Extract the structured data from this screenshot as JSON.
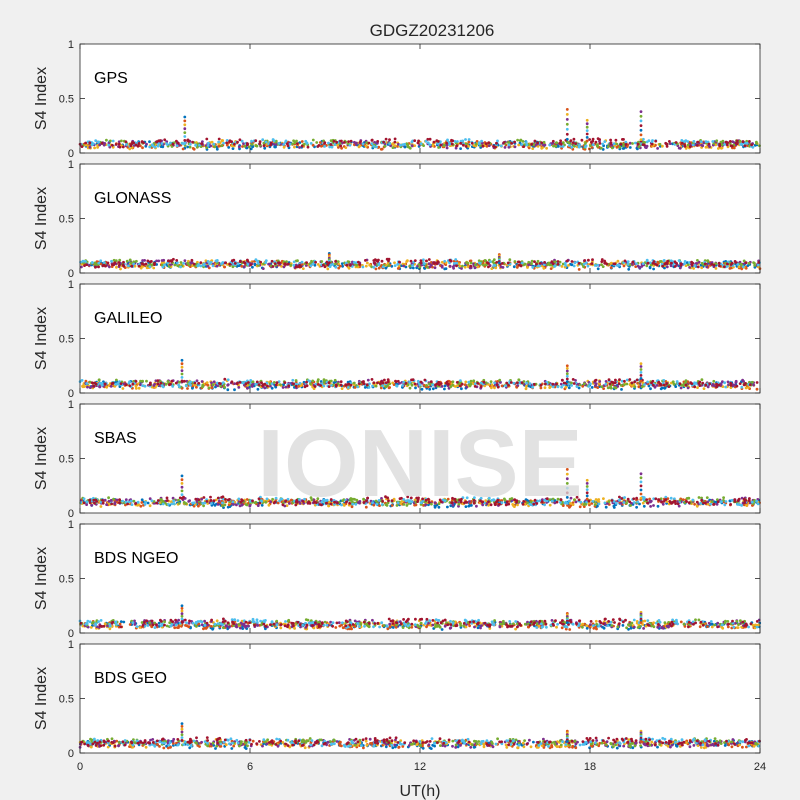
{
  "chart_data": {
    "type": "scatter",
    "title": "GDGZ20231206",
    "xlabel": "UT(h)",
    "ylabel": "S4 Index",
    "xlim": [
      0,
      24
    ],
    "ylim": [
      0,
      1
    ],
    "xticks": [
      "0",
      "6",
      "12",
      "18",
      "24"
    ],
    "yticks": [
      "0",
      "0.5",
      "1"
    ],
    "grid": false,
    "watermark": "IONISE",
    "series_colors": [
      "#0072bd",
      "#d95319",
      "#edb120",
      "#7e2f8e",
      "#77ac30",
      "#4dbeee",
      "#a2142f"
    ],
    "panels": [
      {
        "label": "GPS",
        "baseline": 0.08,
        "spikes": [
          {
            "x": 3.7,
            "y": 0.33
          },
          {
            "x": 17.2,
            "y": 0.4
          },
          {
            "x": 17.9,
            "y": 0.3
          },
          {
            "x": 19.8,
            "y": 0.38
          }
        ]
      },
      {
        "label": "GLONASS",
        "baseline": 0.08,
        "spikes": [
          {
            "x": 8.8,
            "y": 0.18
          },
          {
            "x": 14.8,
            "y": 0.17
          }
        ]
      },
      {
        "label": "GALILEO",
        "baseline": 0.08,
        "spikes": [
          {
            "x": 3.6,
            "y": 0.3
          },
          {
            "x": 17.2,
            "y": 0.25
          },
          {
            "x": 19.8,
            "y": 0.27
          }
        ]
      },
      {
        "label": "SBAS",
        "baseline": 0.1,
        "spikes": [
          {
            "x": 3.6,
            "y": 0.34
          },
          {
            "x": 17.2,
            "y": 0.4
          },
          {
            "x": 17.9,
            "y": 0.3
          },
          {
            "x": 19.8,
            "y": 0.36
          }
        ]
      },
      {
        "label": "BDS NGEO",
        "baseline": 0.08,
        "spikes": [
          {
            "x": 3.6,
            "y": 0.25
          },
          {
            "x": 17.2,
            "y": 0.18
          },
          {
            "x": 19.8,
            "y": 0.19
          }
        ]
      },
      {
        "label": "BDS GEO",
        "baseline": 0.09,
        "spikes": [
          {
            "x": 3.6,
            "y": 0.27
          },
          {
            "x": 17.2,
            "y": 0.2
          },
          {
            "x": 19.8,
            "y": 0.2
          }
        ]
      }
    ]
  }
}
